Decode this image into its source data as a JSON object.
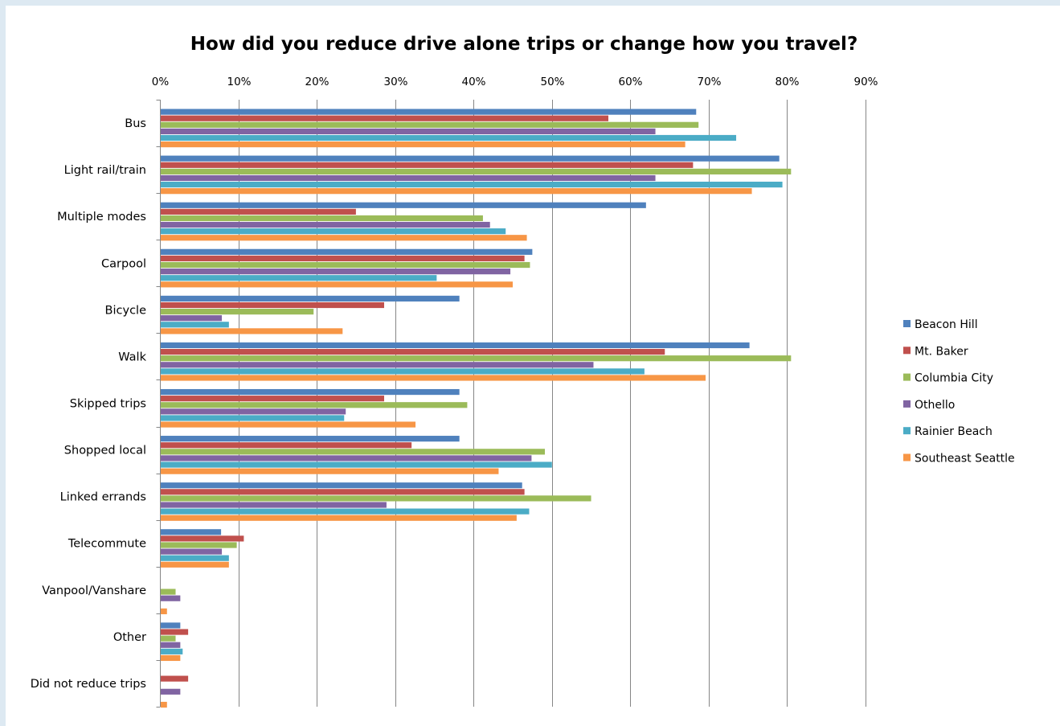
{
  "chart_data": {
    "type": "bar",
    "orientation": "horizontal",
    "title": "How did you reduce drive alone trips or change how you travel?",
    "xlabel": "",
    "ylabel": "",
    "xlim": [
      0,
      0.9
    ],
    "x_ticks": [
      0,
      0.1,
      0.2,
      0.3,
      0.4,
      0.5,
      0.6,
      0.7,
      0.8,
      0.9
    ],
    "x_tick_labels": [
      "0%",
      "10%",
      "20%",
      "30%",
      "40%",
      "50%",
      "60%",
      "70%",
      "80%",
      "90%"
    ],
    "x_axis_position": "top",
    "grid": true,
    "legend_position": "right",
    "categories": [
      "Bus",
      "Light rail/train",
      "Multiple modes",
      "Carpool",
      "Bicycle",
      "Walk",
      "Skipped trips",
      "Shopped local",
      "Linked errands",
      "Telecommute",
      "Vanpool/Vanshare",
      "Other",
      "Did not reduce trips"
    ],
    "series": [
      {
        "name": "Beacon Hill",
        "color": "#4f81bd",
        "values": [
          0.684,
          0.79,
          0.62,
          0.475,
          0.382,
          0.752,
          0.382,
          0.382,
          0.462,
          0.078,
          0,
          0.026,
          0
        ]
      },
      {
        "name": "Mt. Baker",
        "color": "#c0504d",
        "values": [
          0.572,
          0.68,
          0.25,
          0.465,
          0.286,
          0.644,
          0.286,
          0.321,
          0.465,
          0.107,
          0,
          0.036,
          0.036
        ]
      },
      {
        "name": "Columbia City",
        "color": "#9bbb59",
        "values": [
          0.687,
          0.805,
          0.412,
          0.472,
          0.196,
          0.805,
          0.392,
          0.491,
          0.55,
          0.098,
          0.02,
          0.02,
          0
        ]
      },
      {
        "name": "Othello",
        "color": "#8064a2",
        "values": [
          0.632,
          0.632,
          0.421,
          0.447,
          0.079,
          0.553,
          0.237,
          0.474,
          0.289,
          0.079,
          0.026,
          0.026,
          0.026
        ]
      },
      {
        "name": "Rainier Beach",
        "color": "#4bacc6",
        "values": [
          0.735,
          0.794,
          0.441,
          0.353,
          0.088,
          0.618,
          0.235,
          0.5,
          0.471,
          0.088,
          0,
          0.029,
          0
        ]
      },
      {
        "name": "Southeast Seattle",
        "color": "#f79646",
        "values": [
          0.67,
          0.755,
          0.468,
          0.45,
          0.233,
          0.696,
          0.326,
          0.432,
          0.455,
          0.088,
          0.009,
          0.026,
          0.009
        ]
      }
    ]
  }
}
